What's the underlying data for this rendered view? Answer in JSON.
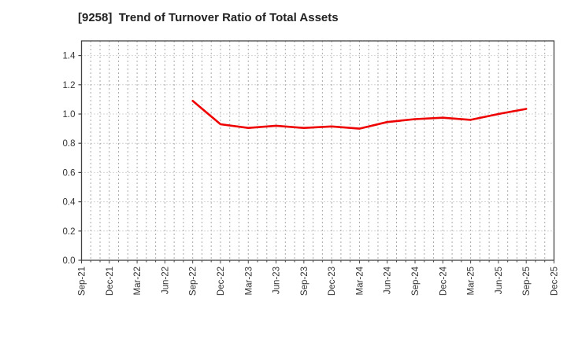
{
  "header": {
    "title": "[9258]  Trend of Turnover Ratio of Total Assets"
  },
  "chart_data": {
    "type": "line",
    "title": "[9258]  Trend of Turnover Ratio of Total Assets",
    "xlabel": "",
    "ylabel": "",
    "x_tick_labels": [
      "Sep-21",
      "Dec-21",
      "Mar-22",
      "Jun-22",
      "Sep-22",
      "Dec-22",
      "Mar-23",
      "Jun-23",
      "Sep-23",
      "Dec-23",
      "Mar-24",
      "Jun-24",
      "Sep-24",
      "Dec-24",
      "Mar-25",
      "Jun-25",
      "Sep-25",
      "Dec-25"
    ],
    "yticks": [
      0.0,
      0.2,
      0.4,
      0.6,
      0.8,
      1.0,
      1.2,
      1.4
    ],
    "ylim": [
      0,
      1.5
    ],
    "grid": "dotted gray, vertical line every month, horizontal every 0.2",
    "legend_position": "none",
    "series": [
      {
        "name": "Turnover Ratio of Total Assets",
        "color": "#ee0000",
        "x": [
          "Sep-22",
          "Dec-22",
          "Mar-23",
          "Jun-23",
          "Sep-23",
          "Dec-23",
          "Mar-24",
          "Jun-24",
          "Sep-24",
          "Dec-24",
          "Mar-25",
          "Jun-25",
          "Sep-25"
        ],
        "values": [
          1.09,
          0.93,
          0.905,
          0.92,
          0.905,
          0.915,
          0.9,
          0.945,
          0.965,
          0.975,
          0.96,
          1.0,
          1.035
        ]
      }
    ]
  },
  "colors": {
    "line": "#ee0000",
    "frame": "#444444",
    "grid": "#aaaaaa",
    "title_text": "#222222",
    "tick_text": "#333333",
    "background": "#ffffff"
  }
}
